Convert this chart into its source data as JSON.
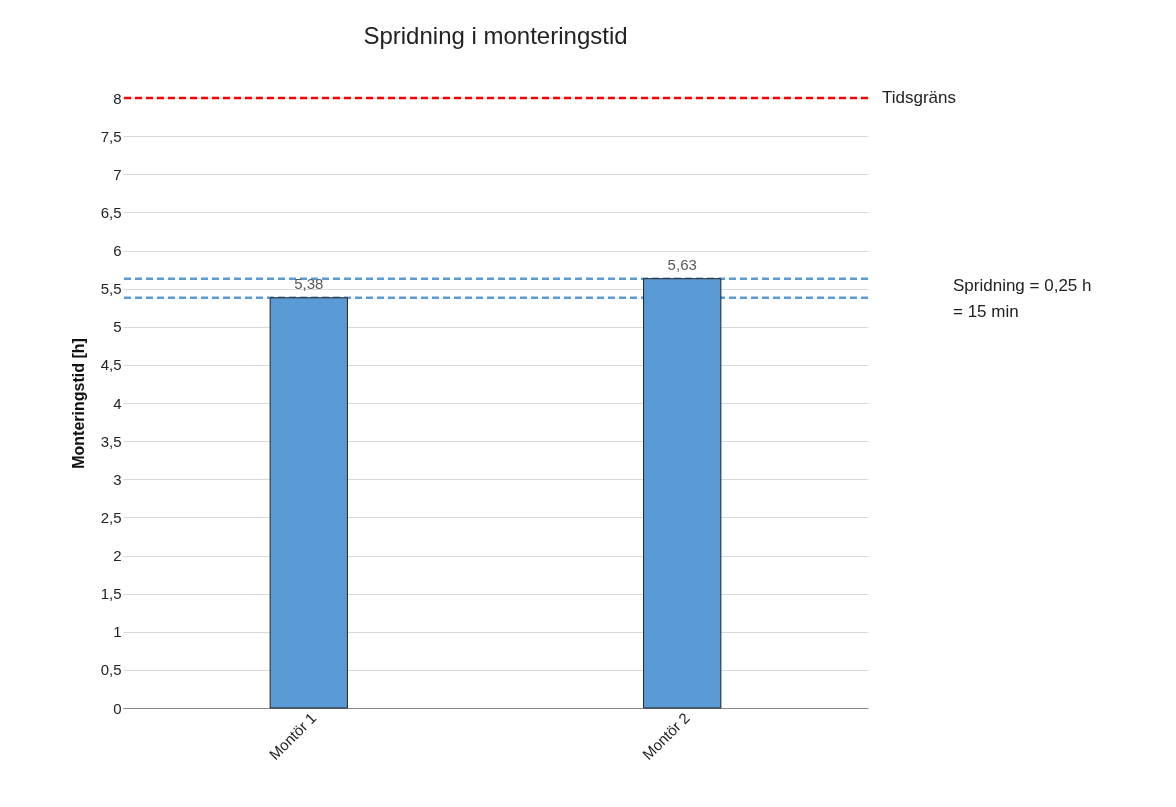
{
  "chart_data": {
    "type": "bar",
    "title": "Spridning i monteringstid",
    "ylabel": "Monteringstid [h]",
    "categories": [
      "Montör 1",
      "Montör 2"
    ],
    "values": [
      5.38,
      5.63
    ],
    "color": "#5b9bd5",
    "value_labels": [
      "5,38",
      "5,63"
    ],
    "ylim": [
      0,
      8
    ],
    "yticks": [
      0,
      {
        "value": 0.5,
        "label": "0,5"
      },
      1,
      {
        "value": 1.5,
        "label": "1,5"
      },
      2,
      {
        "value": 2.5,
        "label": "2,5"
      },
      3,
      {
        "value": 3.5,
        "label": "3,5"
      },
      4,
      {
        "value": 4.5,
        "label": "4,5"
      },
      5,
      {
        "value": 5.5,
        "label": "5,5"
      },
      6,
      {
        "value": 6.5,
        "label": "6,5"
      },
      7,
      {
        "value": 7.5,
        "label": "7,5"
      },
      8
    ],
    "grid": "y",
    "ref_lines": [
      {
        "axis": "y",
        "value": 8,
        "label": "Tidsgräns",
        "color": "#ff0000",
        "line_style": "dashed"
      },
      {
        "axis": "y",
        "value": 5.38,
        "label": null,
        "color": "#5b9bd5",
        "line_style": "dashed"
      },
      {
        "axis": "y",
        "value": 5.63,
        "label": null,
        "color": "#5b9bd5",
        "line_style": "dashed"
      }
    ],
    "annotations": [
      "Spridning = 0,25 h\n= 15 min"
    ]
  }
}
